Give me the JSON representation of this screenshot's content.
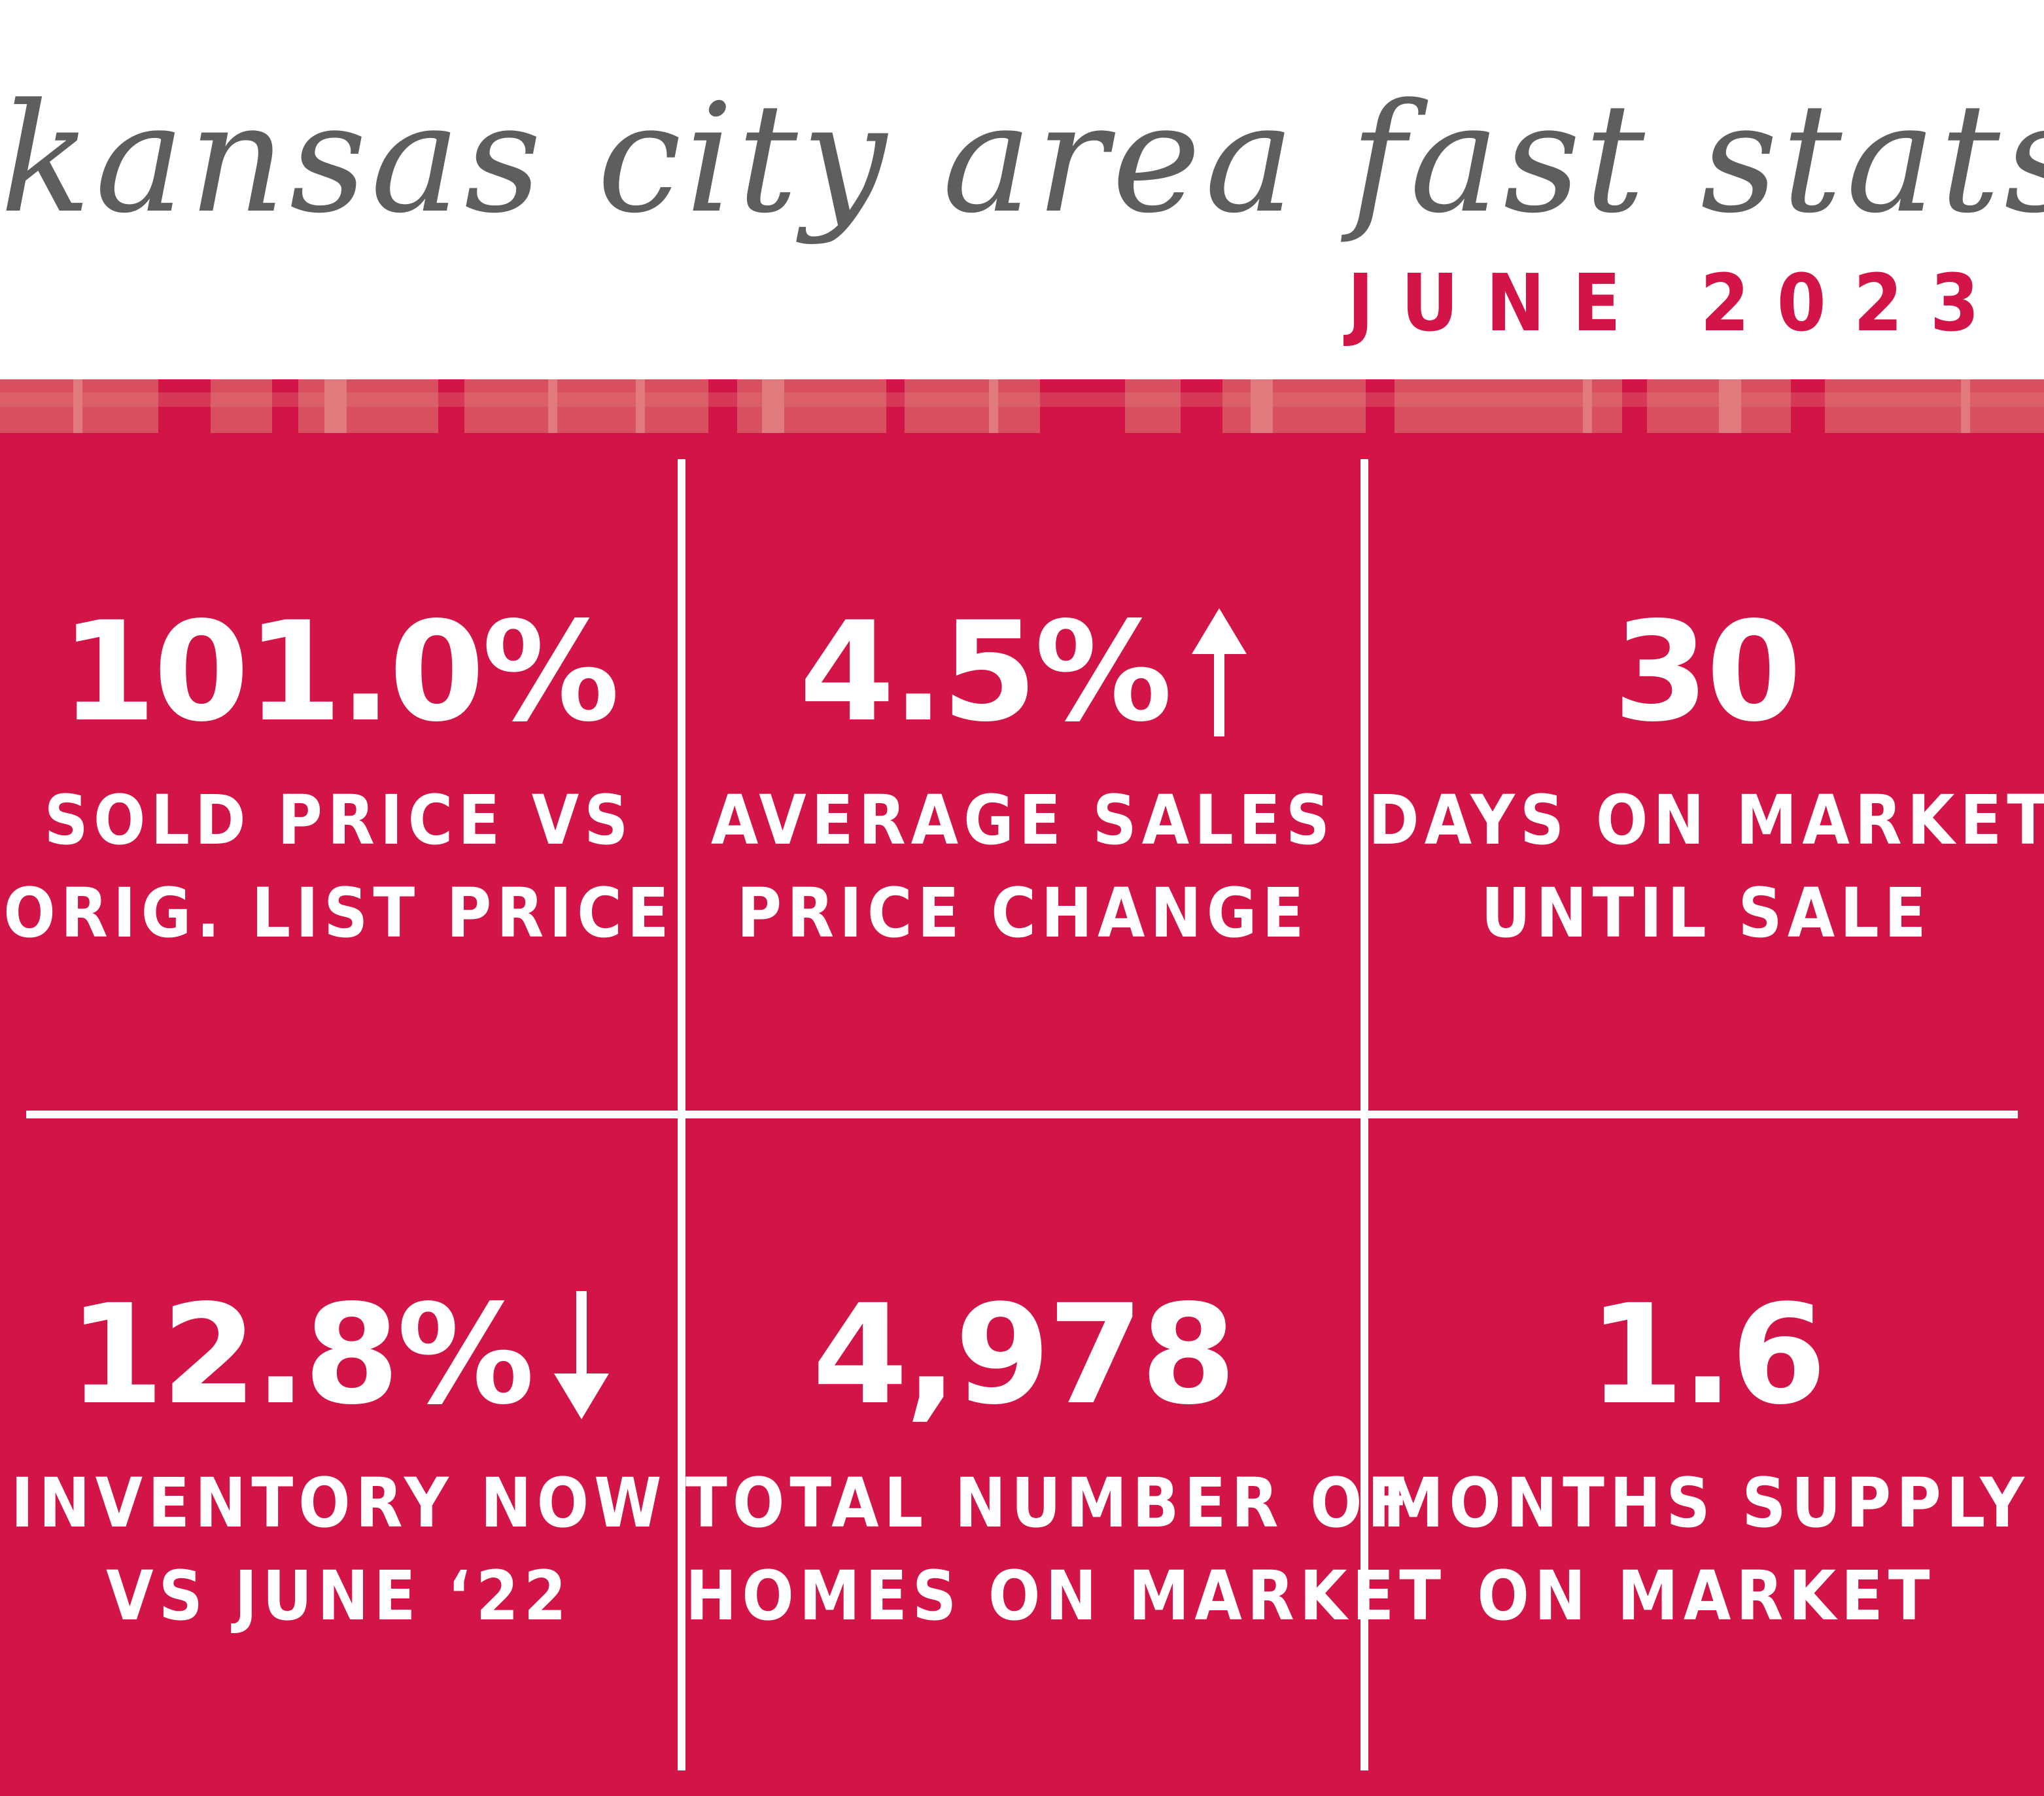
{
  "header": {
    "title": "kansas city area fast stats",
    "subtitle": "JUNE 2023"
  },
  "colors": {
    "brand_red": "#d31446",
    "stripe_light": "#d95060",
    "stripe_pale": "#e07a7c",
    "title_gray": "#5e5e5e",
    "text_white": "#ffffff"
  },
  "stats": [
    {
      "value": "101.0%",
      "label_line1": "SOLD PRICE VS",
      "label_line2": "ORIG. LIST PRICE",
      "trend": "none"
    },
    {
      "value": "4.5%",
      "label_line1": "AVERAGE SALES",
      "label_line2": "PRICE CHANGE",
      "trend": "up-arrow-icon"
    },
    {
      "value": "30",
      "label_line1": "DAYS ON MARKET",
      "label_line2": "UNTIL SALE",
      "trend": "none"
    },
    {
      "value": "12.8%",
      "label_line1": "INVENTORY NOW",
      "label_line2": "VS JUNE ‘22",
      "trend": "down-arrow-icon"
    },
    {
      "value": "4,978",
      "label_line1": "TOTAL NUMBER OF",
      "label_line2": "HOMES ON MARKET",
      "trend": "none"
    },
    {
      "value": "1.6",
      "label_line1": "MONTHS SUPPLY",
      "label_line2": "ON MARKET",
      "trend": "none"
    }
  ]
}
